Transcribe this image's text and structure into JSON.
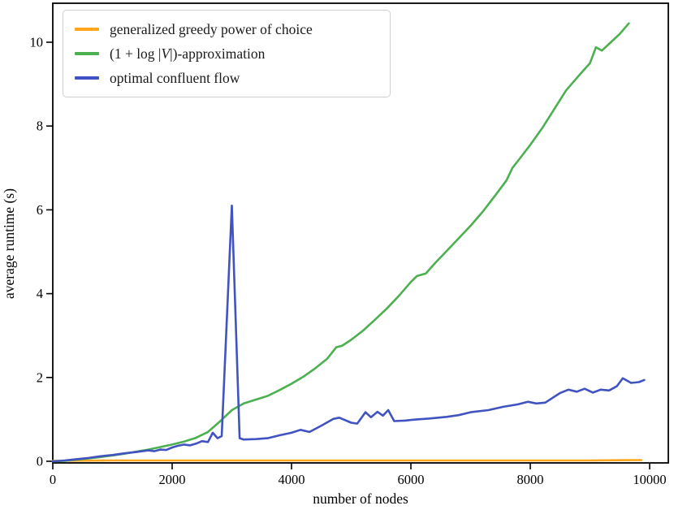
{
  "figure": {
    "background": "#ffffff"
  },
  "chart_data": {
    "type": "line",
    "title": "",
    "xlabel": "number of nodes",
    "ylabel": "average runtime (s)",
    "xlim": [
      0,
      10310
    ],
    "ylim": [
      -0.05,
      10.93
    ],
    "x_ticks": [
      0,
      2000,
      4000,
      6000,
      8000,
      10000
    ],
    "y_ticks": [
      0,
      2,
      4,
      6,
      8,
      10
    ],
    "grid": false,
    "legend_position": "upper-left",
    "axis_color": "#000000",
    "series": [
      {
        "name": "generalized greedy power of choice",
        "color": "#ffa61d",
        "x": [
          0,
          1000,
          2000,
          3000,
          4000,
          5000,
          6000,
          7000,
          8000,
          9000,
          9860
        ],
        "y": [
          0.01,
          0.02,
          0.02,
          0.02,
          0.02,
          0.02,
          0.02,
          0.02,
          0.02,
          0.02,
          0.03
        ]
      },
      {
        "name": "(1 + log |V|)-approximation",
        "color": "#4caf50",
        "x": [
          0,
          200,
          400,
          600,
          800,
          1000,
          1200,
          1400,
          1600,
          1800,
          2000,
          2200,
          2400,
          2600,
          2800,
          3000,
          3100,
          3200,
          3400,
          3600,
          3800,
          4000,
          4200,
          4400,
          4600,
          4750,
          4850,
          5000,
          5200,
          5400,
          5600,
          5800,
          6000,
          6100,
          6250,
          6400,
          6600,
          6800,
          7000,
          7200,
          7400,
          7600,
          7700,
          7800,
          8000,
          8200,
          8400,
          8600,
          8800,
          9000,
          9100,
          9200,
          9350,
          9500,
          9650
        ],
        "y": [
          0,
          0.01,
          0.04,
          0.07,
          0.1,
          0.14,
          0.18,
          0.23,
          0.28,
          0.34,
          0.4,
          0.47,
          0.56,
          0.7,
          0.95,
          1.22,
          1.3,
          1.38,
          1.47,
          1.56,
          1.7,
          1.85,
          2.02,
          2.22,
          2.45,
          2.72,
          2.76,
          2.9,
          3.12,
          3.38,
          3.65,
          3.95,
          4.28,
          4.42,
          4.48,
          4.72,
          5.02,
          5.32,
          5.62,
          5.95,
          6.32,
          6.7,
          7.0,
          7.18,
          7.55,
          7.95,
          8.4,
          8.85,
          9.18,
          9.5,
          9.88,
          9.8,
          10.0,
          10.2,
          10.45
        ]
      },
      {
        "name": "optimal confluent flow",
        "color": "#4053c0",
        "x": [
          0,
          200,
          400,
          600,
          800,
          1000,
          1200,
          1400,
          1600,
          1700,
          1800,
          1900,
          2000,
          2100,
          2200,
          2300,
          2400,
          2500,
          2600,
          2680,
          2760,
          2830,
          3000,
          3130,
          3200,
          3400,
          3600,
          3800,
          4000,
          4150,
          4300,
          4500,
          4700,
          4800,
          5000,
          5100,
          5240,
          5330,
          5440,
          5530,
          5620,
          5720,
          5900,
          6100,
          6300,
          6600,
          6800,
          7000,
          7300,
          7550,
          7800,
          7960,
          8100,
          8250,
          8500,
          8640,
          8780,
          8910,
          9050,
          9180,
          9320,
          9450,
          9550,
          9690,
          9820,
          9910
        ],
        "y": [
          0,
          0.02,
          0.05,
          0.08,
          0.12,
          0.15,
          0.19,
          0.22,
          0.26,
          0.24,
          0.28,
          0.27,
          0.33,
          0.37,
          0.4,
          0.38,
          0.42,
          0.48,
          0.46,
          0.68,
          0.55,
          0.6,
          6.1,
          0.55,
          0.52,
          0.53,
          0.55,
          0.62,
          0.68,
          0.75,
          0.7,
          0.85,
          1.01,
          1.04,
          0.92,
          0.9,
          1.17,
          1.05,
          1.18,
          1.09,
          1.22,
          0.96,
          0.97,
          1.0,
          1.02,
          1.06,
          1.1,
          1.17,
          1.22,
          1.3,
          1.36,
          1.42,
          1.38,
          1.4,
          1.63,
          1.71,
          1.66,
          1.73,
          1.64,
          1.71,
          1.69,
          1.79,
          1.98,
          1.87,
          1.89,
          1.94
        ]
      }
    ]
  },
  "legend": {
    "items": [
      {
        "label": "generalized greedy power of choice",
        "color": "#ffa61d"
      },
      {
        "parts": {
          "pre": "(1 + log |",
          "var": "V",
          "post": "|)-approximation"
        },
        "color": "#4caf50"
      },
      {
        "label": "optimal confluent flow",
        "color": "#4053c0"
      }
    ]
  }
}
